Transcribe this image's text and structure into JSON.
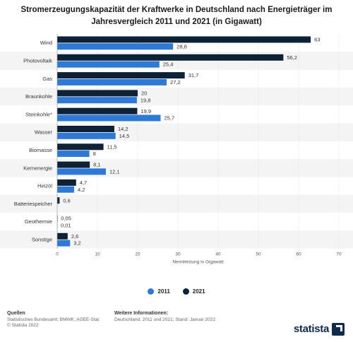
{
  "chart_data": {
    "type": "bar",
    "orientation": "horizontal",
    "title": "Stromerzeugungskapazität der Kraftwerke in Deutschland nach Energieträger im Jahresvergleich 2011 und 2021 (in Gigawatt)",
    "xlabel": "Nennleistung in Gigawatt",
    "ylabel": "",
    "xlim": [
      0,
      70
    ],
    "xticks": [
      0,
      10,
      20,
      30,
      40,
      50,
      60,
      70
    ],
    "grid": true,
    "legend_position": "bottom",
    "categories": [
      "Wind",
      "Photovoltaik",
      "Gas",
      "Braunkohle",
      "Steinkohle*",
      "Wasser",
      "Biomasse",
      "Kernenergie",
      "Heizöl",
      "Batteriespeicher",
      "Geothermie",
      "Sonstige"
    ],
    "series": [
      {
        "name": "2021",
        "color": "#0d2137",
        "values": [
          63,
          56.2,
          31.7,
          20,
          19.9,
          14.2,
          11.5,
          8.1,
          4.7,
          0.6,
          0.05,
          2.6
        ],
        "labels": [
          "63",
          "56,2",
          "31,7",
          "20",
          "19,9",
          "14,2",
          "11,5",
          "8,1",
          "4,7",
          "0,6",
          "0,05",
          "2,6"
        ]
      },
      {
        "name": "2011",
        "color": "#2e79d6",
        "values": [
          28.8,
          25.4,
          27.2,
          19.8,
          25.7,
          14.5,
          8,
          12.1,
          4.2,
          null,
          0.01,
          3.2
        ],
        "labels": [
          "28,8",
          "25,4",
          "27,2",
          "19,8",
          "25,7",
          "14,5",
          "8",
          "12,1",
          "4,2",
          "",
          "0,01",
          "3,2"
        ]
      }
    ]
  },
  "legend": {
    "items": [
      {
        "label": "2011",
        "color": "#2e79d6"
      },
      {
        "label": "2021",
        "color": "#0d2137"
      }
    ]
  },
  "footer": {
    "sources_title": "Quellen",
    "sources_line1": "Statistisches Bundesamt; BMWK; AGEE-Stat",
    "sources_line2": "© Statista 2022",
    "info_title": "Weitere Informationen:",
    "info_line1": "Deutschland; 2011 und 2021; Stand: Januar 2022"
  },
  "brand": {
    "name": "statista"
  }
}
